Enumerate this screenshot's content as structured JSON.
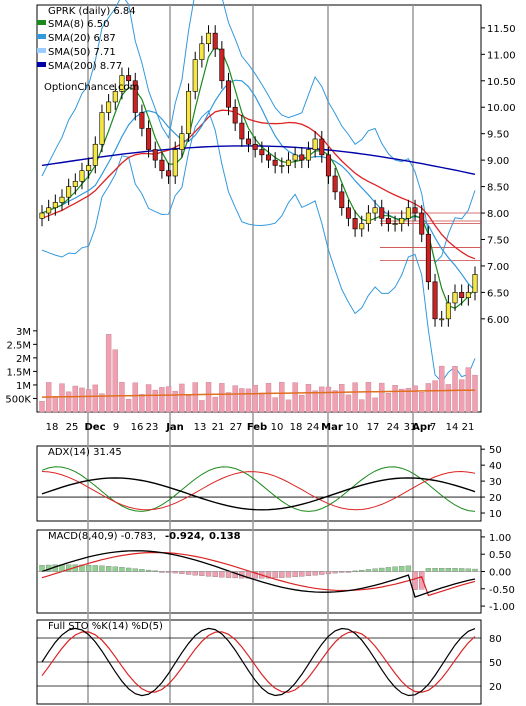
{
  "title": "GPRK (daily) 6.84",
  "watermark": "OptionChance.com",
  "legend": [
    {
      "label": "SMA(8) 6.50",
      "color": "#1a8a1a"
    },
    {
      "label": "SMA(20) 6.87",
      "color": "#3399dd"
    },
    {
      "label": "SMA(50) 7.71",
      "color": "#99ccff"
    },
    {
      "label": "SMA(200) 8.77",
      "color": "#0000aa"
    }
  ],
  "price_axis": [
    "11.50",
    "11.00",
    "10.50",
    "10.00",
    "9.50",
    "9.00",
    "8.50",
    "8.00",
    "7.50",
    "7.00",
    "6.50",
    "6.00"
  ],
  "volume_axis": [
    "3M",
    "2.5M",
    "2M",
    "1.5M",
    "1M",
    "500K"
  ],
  "date_labels": [
    "18",
    "25",
    "Dec",
    "9",
    "16",
    "23",
    "Jan",
    "13",
    "21",
    "27",
    "Feb",
    "10",
    "18",
    "24",
    "Mar",
    "10",
    "17",
    "24",
    "31",
    "Apr",
    "7",
    "14",
    "21"
  ],
  "adx": {
    "label": "ADX(14) 31.45",
    "axis": [
      "50",
      "40",
      "30",
      "20",
      "10"
    ]
  },
  "macd": {
    "label": "MACD(8,40,9) -0.783,",
    "value2": "-0.924,",
    "value3": "0.138",
    "axis": [
      "1.00",
      "0.50",
      "0.00",
      "-0.50",
      "-1.00"
    ]
  },
  "sto": {
    "label": "Full STO %K(14) %D(5)",
    "axis": [
      "80",
      "50",
      "20"
    ]
  },
  "colors": {
    "up": "#f5e642",
    "down": "#cc2222",
    "sma8": "#1a8a1a",
    "sma20": "#3399dd",
    "sma50": "#99ccff",
    "sma200": "#0000aa",
    "bb": "#3399dd",
    "ema": "#dd2222",
    "vol": "#f0a0b0",
    "volavg": "#e07020",
    "macd_red": "#cc0000",
    "macd_blue": "#0033cc"
  },
  "chart_data": [
    {
      "type": "line",
      "title": "GPRK (daily) 6.84",
      "ylim": [
        5.6,
        11.8
      ],
      "series_close": [
        8.0,
        8.1,
        8.2,
        8.3,
        8.5,
        8.6,
        8.8,
        8.9,
        9.3,
        9.9,
        10.1,
        10.3,
        10.6,
        10.5,
        9.9,
        9.6,
        9.2,
        9.0,
        8.8,
        8.7,
        9.2,
        9.5,
        10.3,
        10.9,
        11.2,
        11.4,
        11.1,
        10.5,
        10.0,
        9.7,
        9.4,
        9.3,
        9.2,
        9.1,
        9.0,
        8.9,
        8.9,
        9.0,
        9.1,
        9.0,
        9.2,
        9.4,
        9.1,
        8.7,
        8.4,
        8.1,
        7.9,
        7.7,
        7.8,
        8.0,
        8.1,
        7.9,
        7.8,
        7.8,
        7.9,
        8.1,
        8.0,
        7.6,
        6.7,
        6.0,
        6.0,
        6.3,
        6.5,
        6.4,
        6.5,
        6.84
      ]
    }
  ]
}
